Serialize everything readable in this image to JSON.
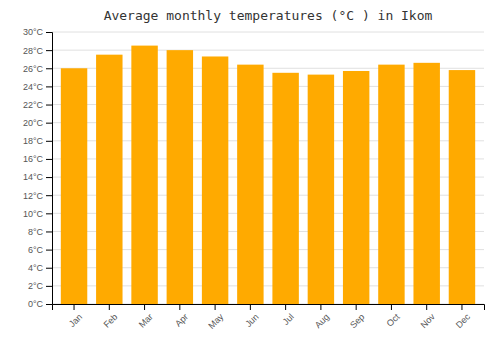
{
  "chart_data": {
    "type": "bar",
    "title": "Average monthly temperatures (°C ) in Ikom",
    "categories": [
      "Jan",
      "Feb",
      "Mar",
      "Apr",
      "May",
      "Jun",
      "Jul",
      "Aug",
      "Sep",
      "Oct",
      "Nov",
      "Dec"
    ],
    "values": [
      26.0,
      27.5,
      28.5,
      28.0,
      27.3,
      26.4,
      25.5,
      25.3,
      25.7,
      26.4,
      26.6,
      25.8
    ],
    "color": "#FFAA00",
    "ylim": [
      0,
      30
    ],
    "yticks": [
      {
        "value": 0,
        "label": "0°C"
      },
      {
        "value": 2,
        "label": "2°C"
      },
      {
        "value": 4,
        "label": "4°C"
      },
      {
        "value": 6,
        "label": "6°C"
      },
      {
        "value": 8,
        "label": "8°C"
      },
      {
        "value": 10,
        "label": "10°C"
      },
      {
        "value": 12,
        "label": "12°C"
      },
      {
        "value": 14,
        "label": "14°C"
      },
      {
        "value": 16,
        "label": "16°C"
      },
      {
        "value": 18,
        "label": "18°C"
      },
      {
        "value": 20,
        "label": "20°C"
      },
      {
        "value": 22,
        "label": "22°C"
      },
      {
        "value": 24,
        "label": "24°C"
      },
      {
        "value": 26,
        "label": "26°C"
      },
      {
        "value": 28,
        "label": "28°C"
      },
      {
        "value": 30,
        "label": "30°C"
      }
    ],
    "grid": true
  }
}
